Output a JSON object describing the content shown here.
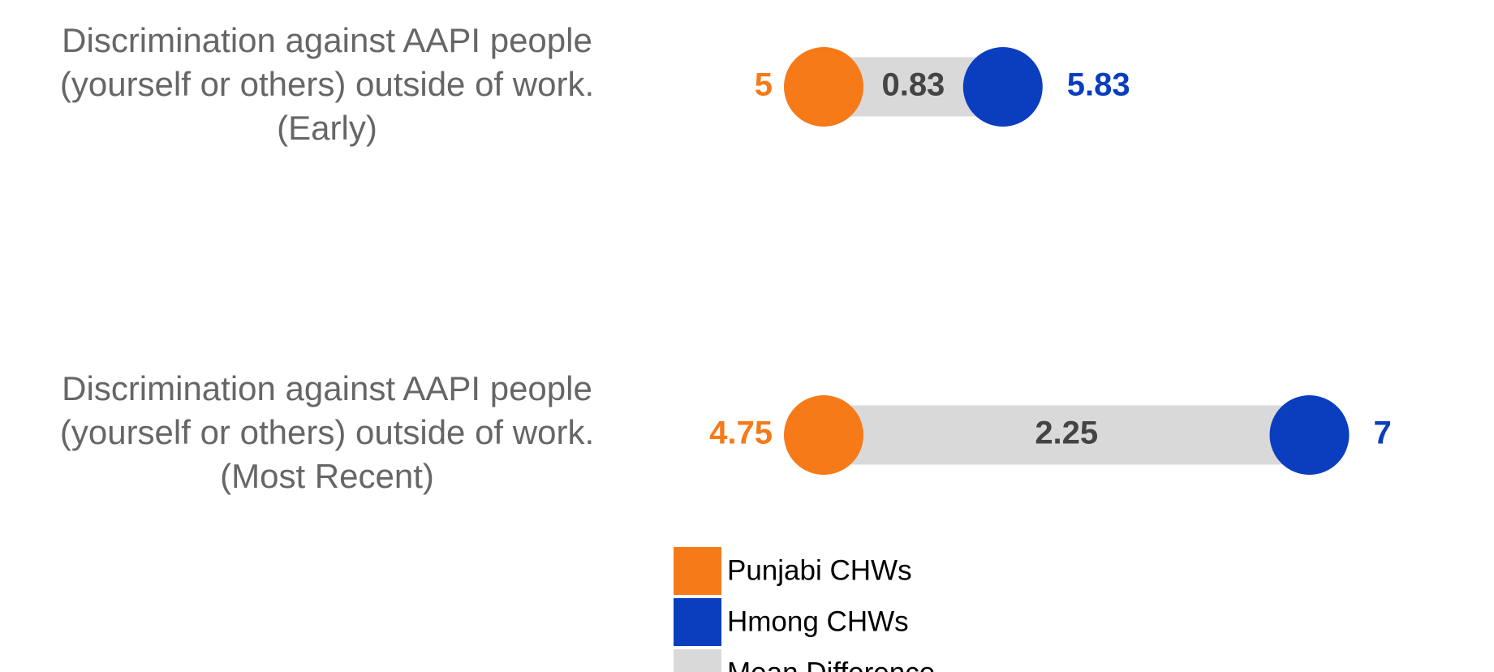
{
  "chart_data": {
    "type": "dumbbell",
    "categories": [
      [
        "Discrimination against AAPI people",
        "(yourself or others) outside of work.",
        "(Early)"
      ],
      [
        "Discrimination against AAPI people",
        "(yourself or others) outside of work.",
        "(Most Recent)"
      ]
    ],
    "series": [
      {
        "name": "Punjabi CHWs",
        "color": "#f67a18",
        "values": [
          5,
          4.75
        ]
      },
      {
        "name": "Hmong CHWs",
        "color": "#0a3ebf",
        "values": [
          5.83,
          7
        ]
      },
      {
        "name": "Mean Difference",
        "color": "#d9d9d9",
        "values": [
          0.83,
          2.25
        ]
      }
    ]
  }
}
